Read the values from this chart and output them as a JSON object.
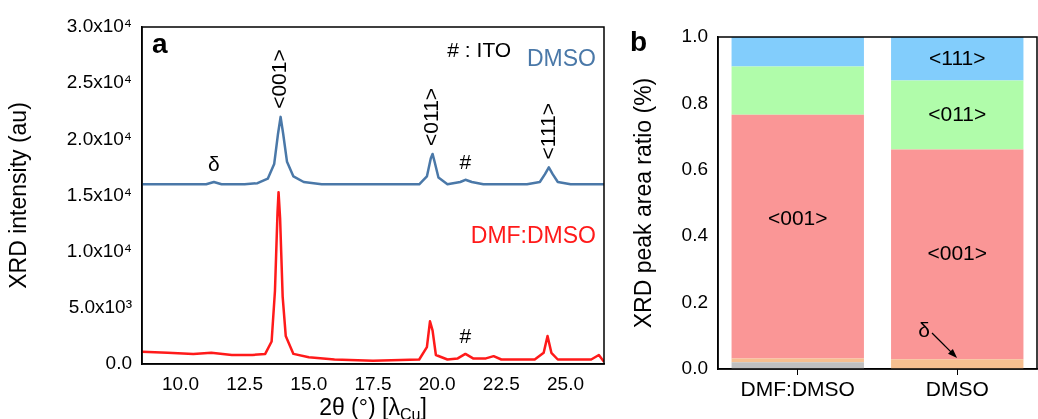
{
  "chart_data": [
    {
      "type": "line",
      "title": "a",
      "xlabel": "2θ (°) [λ$_{Cu}$]",
      "ylabel": "XRD intensity (au)",
      "xlim": [
        8.5,
        26.5
      ],
      "ylim": [
        0,
        30000
      ],
      "xticks": [
        {
          "value": 10,
          "label": "10.0"
        },
        {
          "value": 12.5,
          "label": "12.5"
        },
        {
          "value": 15,
          "label": "15.0"
        },
        {
          "value": 17.5,
          "label": "17.5"
        },
        {
          "value": 20,
          "label": "20.0"
        },
        {
          "value": 22.5,
          "label": "22.5"
        },
        {
          "value": 25,
          "label": "25.0"
        }
      ],
      "yticks": [
        {
          "value": 0,
          "label": "0.0"
        },
        {
          "value": 5000,
          "label": "5.0x10³"
        },
        {
          "value": 10000,
          "label": "1.0x10⁴"
        },
        {
          "value": 15000,
          "label": "1.5x10⁴"
        },
        {
          "value": 20000,
          "label": "2.0x10⁴"
        },
        {
          "value": 25000,
          "label": "2.5x10⁴"
        },
        {
          "value": 30000,
          "label": "3.0x10⁴"
        }
      ],
      "grid": false,
      "legend": false,
      "marker": "none",
      "line_style": "solid",
      "series": [
        {
          "name": "DMSO",
          "color": "#4a78a8",
          "x": [
            8.5,
            9.5,
            10.5,
            11.0,
            11.3,
            11.6,
            12.5,
            13.0,
            13.4,
            13.65,
            13.8,
            13.9,
            14.0,
            14.15,
            14.4,
            14.8,
            15.5,
            17.0,
            18.5,
            19.3,
            19.6,
            19.75,
            19.82,
            19.9,
            20.05,
            20.4,
            20.9,
            21.1,
            21.35,
            21.8,
            22.3,
            23.5,
            24.0,
            24.2,
            24.35,
            24.5,
            24.7,
            25.2,
            26.2,
            26.5
          ],
          "values": [
            16000,
            16000,
            16000,
            16000,
            16200,
            16000,
            16000,
            16100,
            16500,
            17800,
            20500,
            22000,
            20500,
            18000,
            16700,
            16200,
            16000,
            16000,
            16000,
            16000,
            16700,
            18300,
            18700,
            18000,
            16600,
            16000,
            16200,
            16400,
            16200,
            16000,
            16000,
            16000,
            16200,
            16900,
            17500,
            16900,
            16200,
            16000,
            16000,
            16000
          ]
        },
        {
          "name": "DMF:DMSO",
          "color": "#ff1a1a",
          "x": [
            8.5,
            9.5,
            10.5,
            11.2,
            12.0,
            12.8,
            13.3,
            13.55,
            13.68,
            13.78,
            13.82,
            13.88,
            13.98,
            14.1,
            14.4,
            15.0,
            16.0,
            17.5,
            19.3,
            19.6,
            19.72,
            19.82,
            19.95,
            20.4,
            20.8,
            21.1,
            21.4,
            21.9,
            22.2,
            22.5,
            23.8,
            24.15,
            24.3,
            24.45,
            24.7,
            26.0,
            26.3,
            26.5
          ],
          "values": [
            1100,
            1000,
            900,
            1000,
            800,
            800,
            900,
            2000,
            6500,
            13500,
            15300,
            13000,
            6000,
            2500,
            900,
            600,
            400,
            300,
            400,
            1500,
            3800,
            3000,
            800,
            400,
            500,
            900,
            500,
            500,
            700,
            400,
            400,
            1000,
            2500,
            1000,
            400,
            400,
            800,
            200
          ]
        }
      ],
      "annotations": [
        "# : ITO",
        {
          "text": "<001>",
          "x": 13.9,
          "y": 22000
        },
        {
          "text": "<011>",
          "x": 19.82,
          "y": 18700
        },
        {
          "text": "<111>",
          "x": 24.35,
          "y": 17500
        },
        {
          "text": "δ",
          "x": 11.3,
          "y": 16200
        },
        {
          "text": "#",
          "x": 21.1,
          "y": 16400
        },
        {
          "text": "#",
          "x": 21.1,
          "y": 900
        }
      ]
    },
    {
      "type": "bar",
      "stacked": true,
      "title": "b",
      "ylabel": "XRD peak area ratio (%)",
      "categories": [
        "DMF:DMSO",
        "DMSO"
      ],
      "ylim": [
        0,
        1
      ],
      "yticks": [
        {
          "value": 0,
          "label": "0.0"
        },
        0.2,
        0.4,
        0.6,
        0.8,
        {
          "value": 1,
          "label": "1.0"
        }
      ],
      "grid": false,
      "legend": false,
      "series": [
        {
          "color": "#c0c0c0",
          "values": [
            0.02,
            0
          ]
        },
        {
          "color": "#f6bf90",
          "values": [
            0.012,
            0.029
          ]
        },
        {
          "name": "<001>",
          "color": "#fa9696",
          "values": [
            0.734,
            0.632
          ]
        },
        {
          "name": "<011>",
          "color": "#b0fcaa",
          "values": [
            0.145,
            0.208
          ]
        },
        {
          "name": "<111>",
          "color": "#82cdfc",
          "values": [
            0.089,
            0.131
          ]
        }
      ],
      "annotations": [
        "<001>",
        {
          "text": "δ",
          "x": "DMSO",
          "y": 0.029
        }
      ]
    }
  ]
}
